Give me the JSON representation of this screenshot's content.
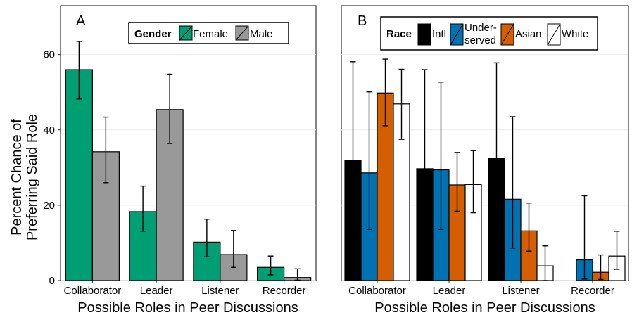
{
  "y_axis_title_line1": "Percent Chance of",
  "y_axis_title_line2": "Preferring Said Role",
  "chart_data": [
    {
      "type": "bar",
      "panel_label": "A",
      "categories": [
        "Collaborator",
        "Leader",
        "Listener",
        "Recorder"
      ],
      "xlabel": "Possible Roles in Peer Discussions",
      "ylabel": "Percent Chance of Preferring Said Role",
      "ylim": [
        0,
        73
      ],
      "yticks": [
        0,
        20,
        40,
        60
      ],
      "grid": true,
      "legend": {
        "title": "Gender",
        "position": "top-right"
      },
      "series": [
        {
          "name": "Female",
          "color": "#009E73",
          "values": [
            56,
            18.3,
            10.2,
            3.5
          ],
          "err_low": [
            48.2,
            13.1,
            6.3,
            1.5
          ],
          "err_high": [
            63.5,
            25.1,
            16.3,
            6.5
          ]
        },
        {
          "name": "Male",
          "color": "#999999",
          "values": [
            34.2,
            45.4,
            6.9,
            0.8
          ],
          "err_low": [
            26.0,
            36.4,
            3.5,
            0.1
          ],
          "err_high": [
            43.4,
            54.8,
            13.3,
            3.1
          ]
        }
      ]
    },
    {
      "type": "bar",
      "panel_label": "B",
      "categories": [
        "Collaborator",
        "Leader",
        "Listener",
        "Recorder"
      ],
      "xlabel": "Possible Roles in Peer Discussions",
      "ylim": [
        0,
        73
      ],
      "yticks": [
        0,
        20,
        40,
        60
      ],
      "grid": true,
      "legend": {
        "title": "Race",
        "position": "top-right"
      },
      "series": [
        {
          "name": "Intl",
          "color": "#000000",
          "values": [
            31.9,
            29.7,
            32.5,
            null
          ],
          "err_low": [
            null,
            null,
            null,
            null
          ],
          "err_high": [
            58.1,
            56.0,
            57.8,
            null
          ]
        },
        {
          "name": "Under-served",
          "color": "#0072B2",
          "values": [
            28.6,
            29.4,
            21.6,
            5.5
          ],
          "err_low": [
            13.6,
            13.6,
            8.6,
            0.4
          ],
          "err_high": [
            50.1,
            52.7,
            43.5,
            22.5
          ]
        },
        {
          "name": "Asian",
          "color": "#D55E00",
          "values": [
            49.8,
            25.4,
            13.2,
            2.2
          ],
          "err_low": [
            41.1,
            18.4,
            7.8,
            0.3
          ],
          "err_high": [
            58.8,
            34.0,
            20.6,
            6.8
          ]
        },
        {
          "name": "White",
          "color": "#FFFFFF",
          "values": [
            46.9,
            25.5,
            3.9,
            6.5
          ],
          "err_low": [
            37.5,
            18.0,
            0.0,
            3.0
          ],
          "err_high": [
            56.1,
            34.5,
            9.2,
            13.1
          ]
        }
      ]
    }
  ],
  "legend_labels": {
    "gender_title": "Gender",
    "female": "Female",
    "male": "Male",
    "race_title": "Race",
    "intl": "Intl",
    "underserved_line1": "Under-",
    "underserved_line2": "served",
    "asian": "Asian",
    "white": "White"
  }
}
